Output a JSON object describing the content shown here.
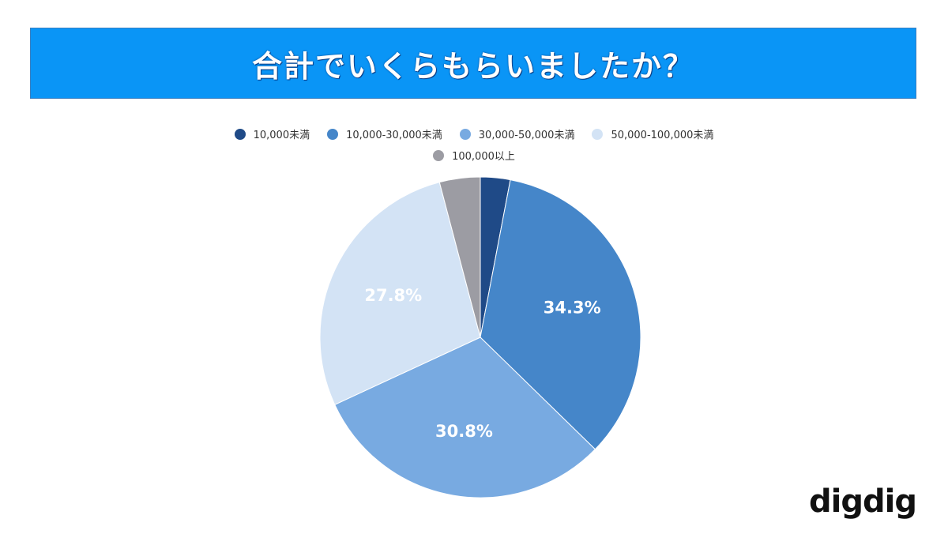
{
  "chart_data": {
    "type": "pie",
    "title": "合計でいくらもらいましたか？",
    "categories": [
      "10,000未満",
      "10,000-30,000未満",
      "30,000-50,000未満",
      "50,000-100,000未満",
      "100,000以上"
    ],
    "values": [
      3.0,
      34.3,
      30.8,
      27.8,
      4.1
    ],
    "value_labels": [
      null,
      "34.3%",
      "30.8%",
      "27.8%",
      null
    ],
    "colors": [
      "#1f4a87",
      "#4586c9",
      "#78aae1",
      "#d3e3f5",
      "#9c9ca3"
    ],
    "label_colors": [
      null,
      "#ffffff",
      "#ffffff",
      "#ffffff",
      null
    ]
  },
  "brand": "digdig"
}
